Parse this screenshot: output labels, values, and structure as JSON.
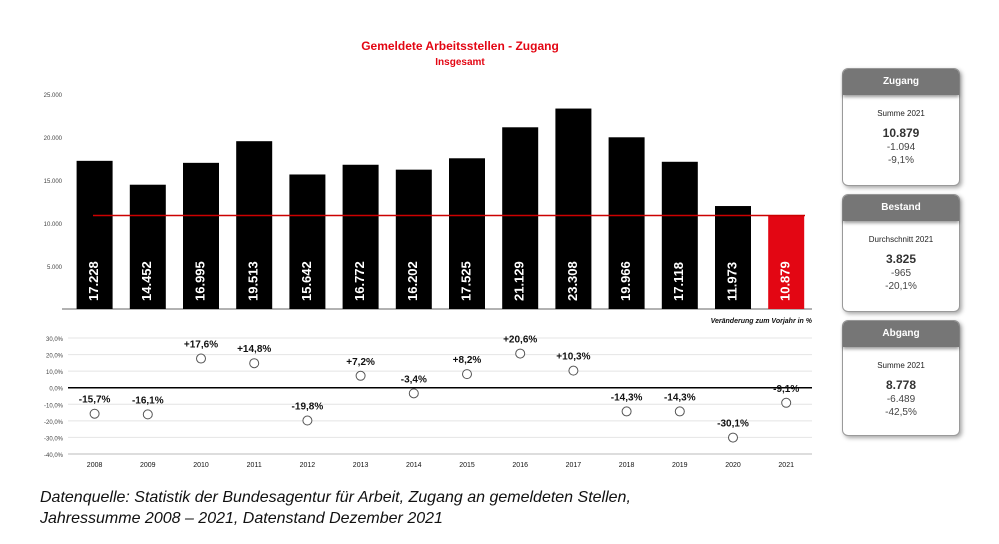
{
  "chart_data": [
    {
      "type": "bar",
      "title": "Gemeldete Arbeitsstellen -  Zugang",
      "subtitle": "Insgesamt",
      "categories": [
        "2008",
        "2009",
        "2010",
        "2011",
        "2012",
        "2013",
        "2014",
        "2015",
        "2016",
        "2017",
        "2018",
        "2019",
        "2020",
        "2021"
      ],
      "values": [
        17228,
        14452,
        16995,
        19513,
        15642,
        16772,
        16202,
        17525,
        21129,
        23308,
        19966,
        17118,
        11973,
        10879
      ],
      "value_labels": [
        "17.228",
        "14.452",
        "16.995",
        "19.513",
        "15.642",
        "16.772",
        "16.202",
        "17.525",
        "21.129",
        "23.308",
        "19.966",
        "17.118",
        "11.973",
        "10.879"
      ],
      "ylim": [
        0,
        25000
      ],
      "yticks": [
        25000,
        20000,
        15000,
        10000,
        5000
      ],
      "ytick_labels": [
        "25.000",
        "20.000",
        "15.000",
        "10.000",
        "5.000"
      ],
      "reference_line": 10879,
      "colors": {
        "bar": "#000000",
        "highlight": "#e30613",
        "reference": "#cc0000"
      },
      "highlight_index": 13
    },
    {
      "type": "scatter",
      "title": "Veränderung zum Vorjahr in %",
      "categories": [
        "2008",
        "2009",
        "2010",
        "2011",
        "2012",
        "2013",
        "2014",
        "2015",
        "2016",
        "2017",
        "2018",
        "2019",
        "2020",
        "2021"
      ],
      "values": [
        -15.7,
        -16.1,
        17.6,
        14.8,
        -19.8,
        7.2,
        -3.4,
        8.2,
        20.6,
        10.3,
        -14.3,
        -14.3,
        -30.1,
        -9.1
      ],
      "value_labels": [
        "-15,7%",
        "-16,1%",
        "+17,6%",
        "+14,8%",
        "-19,8%",
        "+7,2%",
        "-3,4%",
        "+8,2%",
        "+20,6%",
        "+10,3%",
        "-14,3%",
        "-14,3%",
        "-30,1%",
        "-9,1%"
      ],
      "ylim": [
        -40,
        30
      ],
      "yticks": [
        30,
        20,
        10,
        0,
        -10,
        -20,
        -30,
        -40
      ],
      "ytick_labels": [
        "30,0%",
        "20,0%",
        "10,0%",
        "0,0%",
        "-10,0%",
        "-20,0%",
        "-30,0%",
        "-40,0%"
      ]
    }
  ],
  "cards": [
    {
      "title": "Zugang",
      "subtitle": "Summe 2021",
      "value": "10.879",
      "change_abs": "-1.094",
      "change_pct": "-9,1%"
    },
    {
      "title": "Bestand",
      "subtitle": "Durchschnitt 2021",
      "value": "3.825",
      "change_abs": "-965",
      "change_pct": "-20,1%"
    },
    {
      "title": "Abgang",
      "subtitle": "Summe 2021",
      "value": "8.778",
      "change_abs": "-6.489",
      "change_pct": "-42,5%"
    }
  ],
  "source": {
    "line1": "Datenquelle: Statistik der Bundesagentur für Arbeit, Zugang an gemeldeten Stellen,",
    "line2": "Jahressumme 2008 – 2021, Datenstand Dezember 2021"
  }
}
